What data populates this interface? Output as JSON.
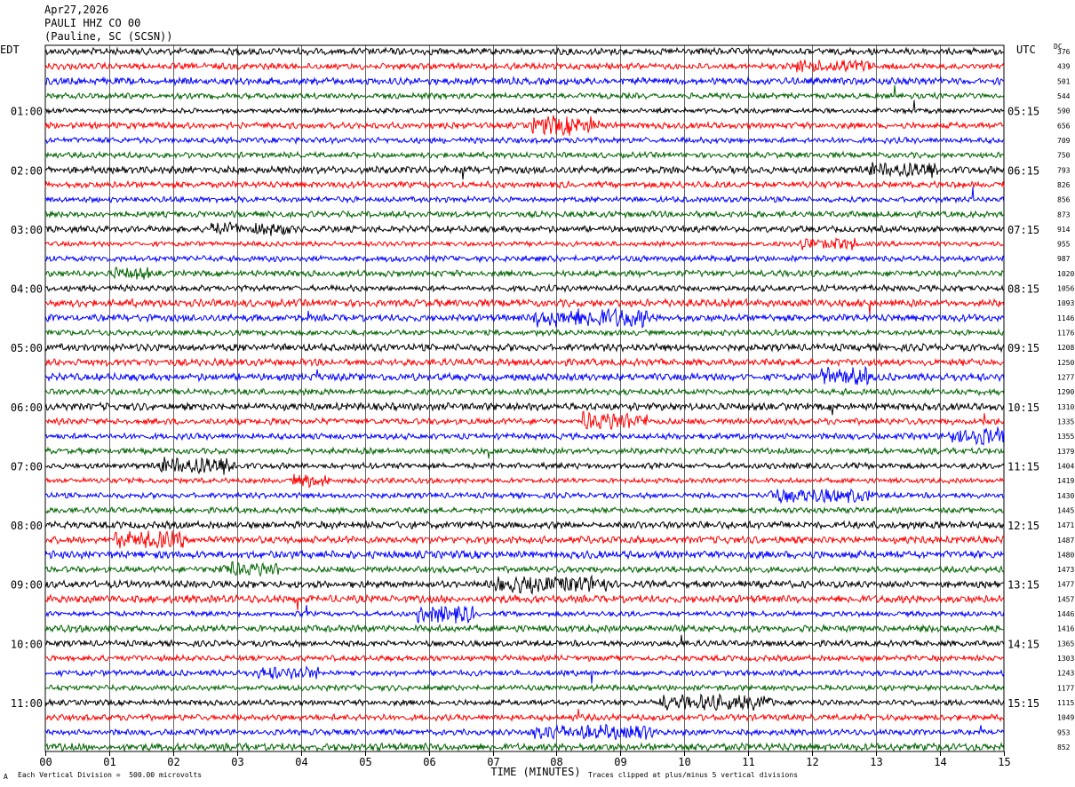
{
  "header": {
    "date": "Apr27,2026",
    "station": "PAULI HHZ CO 00",
    "location": "(Pauline, SC (SCSN))"
  },
  "left_zone": "EDT",
  "right_zone": "UTC",
  "dc_label": "DC",
  "footer": {
    "scale_note": "Each Vertical Division =  500.00 microvolts",
    "clip_note": "Traces clipped at plus/minus 5 vertical divisions",
    "corner_mark": "A"
  },
  "chart_data": {
    "type": "helicorder",
    "xlabel": "TIME (MINUTES)",
    "x_ticks": [
      "00",
      "01",
      "02",
      "03",
      "04",
      "05",
      "06",
      "07",
      "08",
      "09",
      "10",
      "11",
      "12",
      "13",
      "14",
      "15"
    ],
    "xlim": [
      0,
      15
    ],
    "trace_colors": [
      "#000000",
      "#ff0000",
      "#0000ff",
      "#006400"
    ],
    "left_hour_labels": [
      {
        "row": 4,
        "label": "01:00"
      },
      {
        "row": 8,
        "label": "02:00"
      },
      {
        "row": 12,
        "label": "03:00"
      },
      {
        "row": 16,
        "label": "04:00"
      },
      {
        "row": 20,
        "label": "05:00"
      },
      {
        "row": 24,
        "label": "06:00"
      },
      {
        "row": 28,
        "label": "07:00"
      },
      {
        "row": 32,
        "label": "08:00"
      },
      {
        "row": 36,
        "label": "09:00"
      },
      {
        "row": 40,
        "label": "10:00"
      },
      {
        "row": 44,
        "label": "11:00"
      }
    ],
    "right_hour_labels": [
      {
        "row": 4,
        "label": "05:15"
      },
      {
        "row": 8,
        "label": "06:15"
      },
      {
        "row": 12,
        "label": "07:15"
      },
      {
        "row": 16,
        "label": "08:15"
      },
      {
        "row": 20,
        "label": "09:15"
      },
      {
        "row": 24,
        "label": "10:15"
      },
      {
        "row": 28,
        "label": "11:15"
      },
      {
        "row": 32,
        "label": "12:15"
      },
      {
        "row": 36,
        "label": "13:15"
      },
      {
        "row": 40,
        "label": "14:15"
      },
      {
        "row": 44,
        "label": "15:15"
      }
    ],
    "dc_offsets": [
      "376",
      "439",
      "501",
      "544",
      "590",
      "656",
      "709",
      "750",
      "793",
      "826",
      "856",
      "873",
      "914",
      "955",
      "987",
      "1020",
      "1056",
      "1093",
      "1146",
      "1176",
      "1208",
      "1250",
      "1277",
      "1290",
      "1310",
      "1335",
      "1355",
      "1379",
      "1404",
      "1419",
      "1430",
      "1445",
      "1471",
      "1487",
      "1480",
      "1473",
      "1477",
      "1457",
      "1446",
      "1416",
      "1365",
      "1303",
      "1243",
      "1177",
      "1115",
      "1049",
      "953",
      "852"
    ]
  }
}
